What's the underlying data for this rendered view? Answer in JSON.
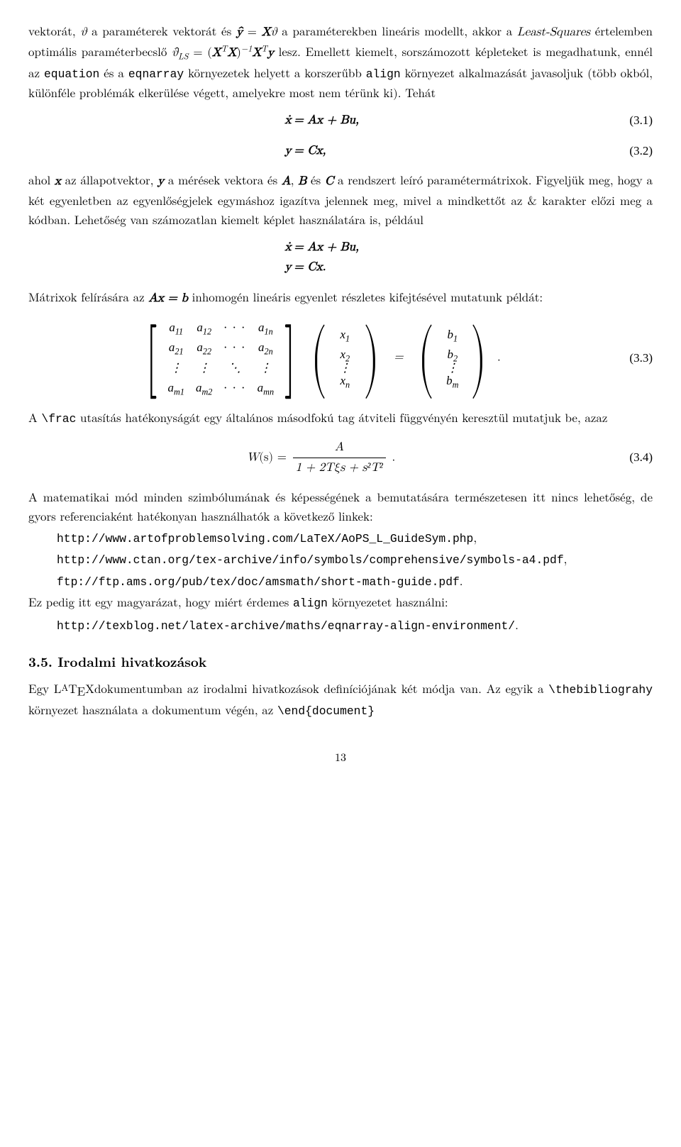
{
  "para1_a": "vektorát, ",
  "para1_vartheta": "ϑ",
  "para1_b": " a paraméterek vektorát és ",
  "para1_yhat": "ŷ",
  "para1_eq1": " = ",
  "para1_X": "X",
  "para1_vartheta2": "ϑ",
  "para1_c": " a paraméterekben lineáris modellt, akkor a ",
  "para1_ls": "Least-Squares",
  "para1_d": " értelemben optimális paraméterbecslő ",
  "para1_thetahat": "ϑ̂",
  "para1_LSsub": "LS",
  "para1_eq2": " = (",
  "para1_XT1": "X",
  "para1_Tsup1": "T",
  "para1_X2": "X",
  "para1_rp": ")",
  "para1_m1": "−1",
  "para1_X3": "X",
  "para1_Tsup2": "T",
  "para1_y": "y",
  "para1_e": " lesz. Emellett kiemelt, sorszámozott képleteket is megadhatunk, ennél az ",
  "para1_equation": "equation",
  "para1_f": " és a ",
  "para1_eqnarray": "eqnarray",
  "para1_g": " környezetek helyett a korszerűbb ",
  "para1_align": "align",
  "para1_h": " környezet alkalmazását javasoljuk (több okból, különféle problémák elkerülése végett, amelyekre most nem térünk ki). Tehát",
  "eq31_lhs": "ẋ",
  "eq31_rhs": " = Ax + Bu,",
  "eq31_num": "(3.1)",
  "eq32_lhs": "y",
  "eq32_rhs": " = Cx,",
  "eq32_num": "(3.2)",
  "para2_a": "ahol ",
  "para2_x": "x",
  "para2_b": " az állapotvektor, ",
  "para2_y": "y",
  "para2_c": " a mérések vektora és ",
  "para2_A": "A",
  "para2_d": ", ",
  "para2_B": "B",
  "para2_e": " és ",
  "para2_C": "C",
  "para2_f": " a rendszert leíró paramétermátrixok. Figyeljük meg, hogy a két egyenletben az egyenlőségjelek egymáshoz igazítva jelennek meg, mivel a mindkettőt az & karakter előzi meg a kódban. Lehetőség van számozatlan kiemelt képlet használatára is, például",
  "eqU1_lhs": "ẋ",
  "eqU1_rhs": " = Ax + Bu,",
  "eqU2_lhs": "y",
  "eqU2_rhs": " = Cx.",
  "para3_a": "Mátrixok felírására az ",
  "para3_Axb": "Ax = b",
  "para3_b": " inhomogén lineáris egyenlet részletes kifejtésével mutatunk példát:",
  "matA": {
    "r1": [
      "a",
      "a",
      "· · ·",
      "a"
    ],
    "r1sub": [
      "11",
      "12",
      "",
      "1n"
    ],
    "r2": [
      "a",
      "a",
      "· · ·",
      "a"
    ],
    "r2sub": [
      "21",
      "22",
      "",
      "2n"
    ],
    "r3dots": [
      "⋮",
      "⋮",
      "⋱",
      "⋮"
    ],
    "r4": [
      "a",
      "a",
      "· · ·",
      "a"
    ],
    "r4sub": [
      "m1",
      "m2",
      "",
      "mn"
    ]
  },
  "vecX": {
    "items": [
      "x",
      "x",
      "⋮",
      "x"
    ],
    "subs": [
      "1",
      "2",
      "",
      "n"
    ]
  },
  "vecB": {
    "items": [
      "b",
      "b",
      "⋮",
      "b"
    ],
    "subs": [
      "1",
      "2",
      "",
      "m"
    ]
  },
  "mat_eq": " = ",
  "mat_period": " .",
  "eq33_num": "(3.3)",
  "para4_a": "A ",
  "para4_frac": "\\frac",
  "para4_b": " utasítás hatékonyságát egy általános másodfokú tag átviteli függvényén keresztül mutatjuk be, azaz",
  "eq34_W": "W",
  "eq34_s": "(s) = ",
  "eq34_num_A": "A",
  "eq34_den": "1 + 2Tξs + s²T²",
  "eq34_period": " .",
  "eq34_numlabel": "(3.4)",
  "para5": "A matematikai mód minden szimbólumának és képességének a bemutatására természetesen itt nincs lehetőség, de gyors referenciaként hatékonyan használhatók a következő linkek:",
  "link1": "http://www.artofproblemsolving.com/LaTeX/AoPS_L_GuideSym.php",
  "link1_comma": ",",
  "link2": "http://www.ctan.org/tex-archive/info/symbols/comprehensive/symbols-a4.pdf",
  "link2_comma": ",",
  "link3": "ftp://ftp.ams.org/pub/tex/doc/amsmath/short-math-guide.pdf",
  "link3_period": ".",
  "para6_a": "Ez pedig itt egy magyarázat, hogy miért érdemes ",
  "para6_align": "align",
  "para6_b": " környezetet használni:",
  "link4": "http://texblog.net/latex-archive/maths/eqnarray-align-environment/",
  "link4_period": ".",
  "section_num": "3.5.",
  "section_title": " Irodalmi hivatkozások",
  "para7_a": "Egy L",
  "para7_A": "A",
  "para7_TEX": "T",
  "para7_E": "E",
  "para7_X": "X",
  "para7_b": "dokumentumban az irodalmi hivatkozások definíciójának két módja van. Az egyik a ",
  "para7_thebib": "\\thebibliograhy",
  "para7_c": " környezet használata a dokumentum végén, az ",
  "para7_enddoc": "\\end{document}",
  "pagenum": "13"
}
